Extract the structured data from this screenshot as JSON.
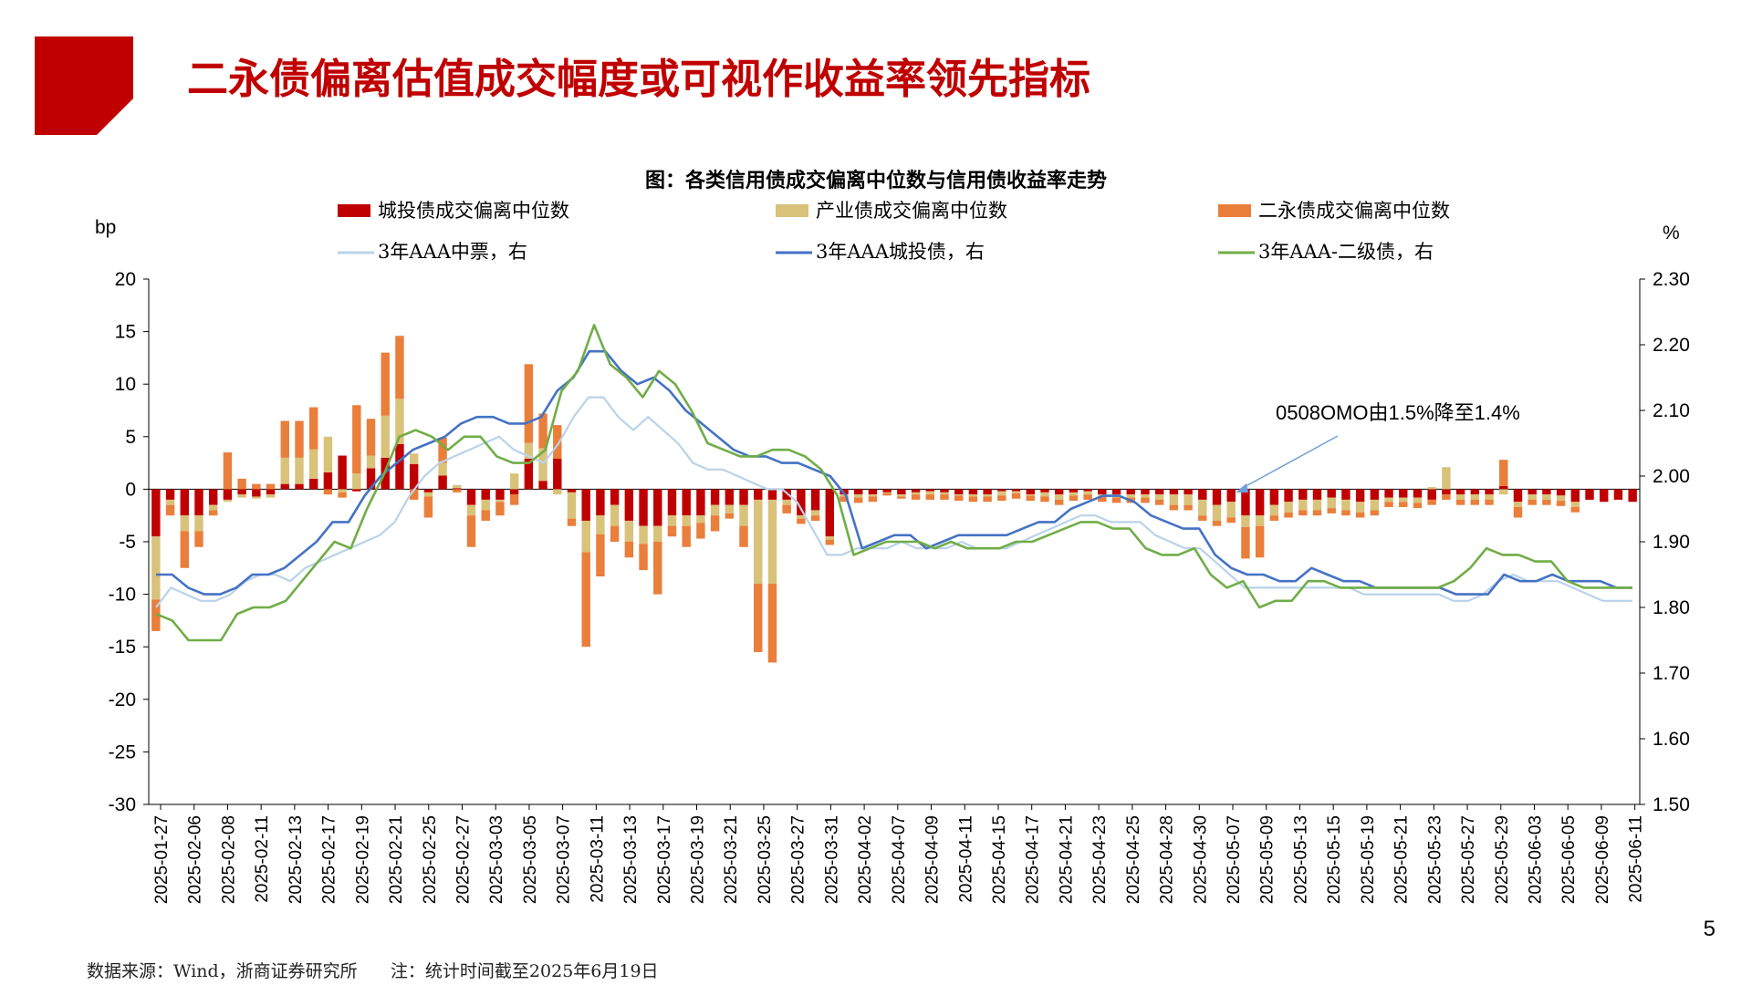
{
  "slide": {
    "title": "二永债偏离估值成交幅度或可视作收益率领先指标",
    "page_number": "5",
    "source_note": "数据来源：Wind，浙商证券研究所",
    "date_note": "注：统计时间截至2025年6月19日",
    "brand_color": "#c00000"
  },
  "chart_data": {
    "type": "bar+line",
    "title": "图：各类信用债成交偏离中位数与信用债收益率走势",
    "left_axis": {
      "unit": "bp",
      "min": -30,
      "max": 20,
      "ticks": [
        20,
        15,
        10,
        5,
        0,
        -5,
        -10,
        -15,
        -20,
        -25,
        -30
      ]
    },
    "right_axis": {
      "unit": "%",
      "min": 1.5,
      "max": 2.3,
      "ticks": [
        "2.30",
        "2.20",
        "2.10",
        "2.00",
        "1.90",
        "1.80",
        "1.70",
        "1.60",
        "1.50"
      ]
    },
    "x_tick_labels": [
      "2025-01-27",
      "2025-02-06",
      "2025-02-08",
      "2025-02-11",
      "2025-02-13",
      "2025-02-17",
      "2025-02-19",
      "2025-02-21",
      "2025-02-25",
      "2025-02-27",
      "2025-03-03",
      "2025-03-05",
      "2025-03-07",
      "2025-03-11",
      "2025-03-13",
      "2025-03-17",
      "2025-03-19",
      "2025-03-21",
      "2025-03-25",
      "2025-03-27",
      "2025-03-31",
      "2025-04-02",
      "2025-04-07",
      "2025-04-09",
      "2025-04-11",
      "2025-04-15",
      "2025-04-17",
      "2025-04-21",
      "2025-04-23",
      "2025-04-25",
      "2025-04-28",
      "2025-04-30",
      "2025-05-07",
      "2025-05-09",
      "2025-05-13",
      "2025-05-15",
      "2025-05-19",
      "2025-05-21",
      "2025-05-23",
      "2025-05-27",
      "2025-05-29",
      "2025-06-03",
      "2025-06-05",
      "2025-06-09",
      "2025-06-11"
    ],
    "legend": [
      {
        "name": "城投债成交偏离中位数",
        "kind": "bar",
        "color": "#c00000"
      },
      {
        "name": "产业债成交偏离中位数",
        "kind": "bar",
        "color": "#d9c27a"
      },
      {
        "name": "二永债成交偏离中位数",
        "kind": "bar",
        "color": "#ea7e3b"
      },
      {
        "name": "3年AAA中票，右",
        "kind": "line",
        "color": "#b9d3ea"
      },
      {
        "name": "3年AAA城投债，右",
        "kind": "line",
        "color": "#4472c4"
      },
      {
        "name": "3年AAA-二级债，右",
        "kind": "line",
        "color": "#70ad47"
      }
    ],
    "bars": {
      "urban": [
        -4.5,
        -1,
        -2.5,
        -2.5,
        -1.5,
        -1,
        -0.5,
        -0.7,
        -0.5,
        0.5,
        0.5,
        1,
        1.6,
        3.2,
        -0.2,
        2,
        3,
        4.3,
        2.4,
        -0.3,
        1.3,
        0.1,
        -1.5,
        -1,
        -1,
        -0.5,
        2.9,
        0.8,
        2.9,
        -0.3,
        -3,
        -2.5,
        -1.5,
        -3,
        -3.5,
        -3.5,
        -2.5,
        -2.5,
        -2.5,
        -1.5,
        -1.5,
        -1.5,
        -1,
        -1,
        -1,
        -2.5,
        -2,
        -4.5,
        -0.5,
        -0.5,
        -0.5,
        -0.3,
        -0.5,
        -0.3,
        -0.2,
        -0.3,
        -0.5,
        -0.5,
        -0.5,
        -0.2,
        -0.2,
        -0.5,
        -0.3,
        -0.5,
        -0.3,
        -0.2,
        -0.5,
        -0.5,
        -0.5,
        -0.5,
        -0.5,
        -0.5,
        -0.5,
        -1,
        -1.5,
        -1.2,
        -2.5,
        -2.5,
        -1.5,
        -1.2,
        -1,
        -1,
        -0.8,
        -1,
        -1.2,
        -1,
        -0.8,
        -0.8,
        -0.8,
        -1,
        -0.5,
        -0.5,
        -0.5,
        -0.5,
        0.3,
        -1.2,
        -0.5,
        -0.5,
        -0.6,
        -1.2,
        -1,
        -1.2,
        -1,
        -1.2
      ],
      "industrial": [
        -6,
        -0.5,
        -1.5,
        -1.5,
        -0.5,
        -0.2,
        -0.3,
        -0.2,
        -0.3,
        2.5,
        2.5,
        2.8,
        3.4,
        -0.3,
        1.5,
        1.2,
        4,
        4.3,
        1,
        -0.4,
        1.2,
        0.3,
        -1,
        -1,
        -0.2,
        1.5,
        1.5,
        3.1,
        -0.5,
        -2.5,
        -3,
        -1.8,
        -2,
        -2,
        -1.7,
        -1.5,
        -1,
        -1,
        -0.7,
        -1,
        -0.8,
        -2,
        -8,
        -8,
        -0.5,
        -0.3,
        -0.5,
        -0.3,
        -0.2,
        -0.3,
        -0.2,
        -0.1,
        -0.2,
        -0.2,
        -0.3,
        -0.2,
        -0.1,
        -0.2,
        -0.2,
        -0.4,
        -0.2,
        -0.1,
        -0.4,
        -0.5,
        -0.3,
        -0.3,
        -0.2,
        -0.3,
        -0.3,
        -0.3,
        -0.5,
        -1,
        -1,
        -1.5,
        -1.5,
        -1.5,
        -1.1,
        -1,
        -1,
        -1,
        -1,
        -1,
        -1,
        -1,
        -1,
        -1,
        -0.4,
        -0.4,
        -0.5,
        0.2,
        2.1,
        -0.5,
        -0.5,
        -0.5,
        -0.5,
        -0.5,
        -0.5,
        -0.5,
        -0.5,
        -0.5
      ],
      "perpetual": [
        -3,
        -1,
        -3.5,
        -1.5,
        -0.5,
        3.5,
        1,
        0.5,
        0.5,
        3.5,
        3.5,
        4,
        -0.5,
        -0.5,
        6.5,
        3.5,
        6,
        6,
        -1,
        -2,
        2.4,
        -0.3,
        -3,
        -1,
        -1.3,
        -1,
        7.5,
        3.3,
        3.2,
        -0.7,
        -9,
        -4,
        -1.5,
        -1.5,
        -2.5,
        -5,
        -1,
        -2,
        -1.5,
        -1.5,
        -0.5,
        -2,
        -6.5,
        -7.5,
        -0.8,
        -0.5,
        -0.5,
        -0.5,
        -0.5,
        -0.5,
        -0.5,
        -0.2,
        -0.2,
        -0.5,
        -0.5,
        -0.5,
        -0.5,
        -0.5,
        -0.5,
        -0.5,
        -0.5,
        -0.5,
        -0.5,
        -0.5,
        -0.5,
        -0.5,
        -0.5,
        -0.5,
        -0.5,
        -0.5,
        -0.5,
        -0.5,
        -0.5,
        -0.5,
        -0.5,
        -0.5,
        -3,
        -3,
        -0.5,
        -0.5,
        -0.5,
        -0.5,
        -0.5,
        -0.5,
        -0.5,
        -0.5,
        -0.5,
        -0.5,
        -0.5,
        -0.5,
        -0.5,
        -0.5,
        -0.5,
        -0.5,
        2.5,
        -1,
        -0.5,
        -0.5,
        -0.5,
        -0.5,
        -0.5,
        -0.5,
        -0.5,
        -0.5
      ]
    },
    "lines": {
      "mtn_3y_aaa": [
        1.8,
        1.83,
        1.82,
        1.81,
        1.81,
        1.82,
        1.84,
        1.85,
        1.85,
        1.84,
        1.86,
        1.87,
        1.88,
        1.89,
        1.9,
        1.91,
        1.93,
        1.97,
        2.0,
        2.02,
        2.03,
        2.04,
        2.05,
        2.06,
        2.04,
        2.03,
        2.02,
        2.05,
        2.09,
        2.12,
        2.12,
        2.09,
        2.07,
        2.09,
        2.07,
        2.05,
        2.02,
        2.01,
        2.01,
        2.0,
        1.99,
        1.98,
        1.98,
        1.96,
        1.92,
        1.88,
        1.88,
        1.89,
        1.89,
        1.89,
        1.9,
        1.89,
        1.89,
        1.89,
        1.9,
        1.89,
        1.89,
        1.89,
        1.9,
        1.91,
        1.92,
        1.93,
        1.94,
        1.94,
        1.93,
        1.93,
        1.93,
        1.91,
        1.9,
        1.89,
        1.89,
        1.87,
        1.85,
        1.83,
        1.83,
        1.83,
        1.83,
        1.83,
        1.83,
        1.83,
        1.83,
        1.82,
        1.82,
        1.82,
        1.82,
        1.82,
        1.82,
        1.81,
        1.81,
        1.82,
        1.84,
        1.85,
        1.84,
        1.84,
        1.84,
        1.83,
        1.82,
        1.81,
        1.81,
        1.81
      ],
      "urban_3y_aaa": [
        1.85,
        1.85,
        1.83,
        1.82,
        1.82,
        1.83,
        1.85,
        1.85,
        1.86,
        1.88,
        1.9,
        1.93,
        1.93,
        1.97,
        2.0,
        2.02,
        2.04,
        2.05,
        2.06,
        2.08,
        2.09,
        2.09,
        2.08,
        2.08,
        2.09,
        2.13,
        2.15,
        2.19,
        2.19,
        2.16,
        2.14,
        2.15,
        2.13,
        2.1,
        2.08,
        2.06,
        2.04,
        2.03,
        2.03,
        2.02,
        2.02,
        2.01,
        2.0,
        1.97,
        1.89,
        1.9,
        1.91,
        1.91,
        1.89,
        1.9,
        1.91,
        1.91,
        1.91,
        1.91,
        1.92,
        1.93,
        1.93,
        1.95,
        1.96,
        1.97,
        1.97,
        1.96,
        1.94,
        1.93,
        1.92,
        1.92,
        1.88,
        1.86,
        1.85,
        1.85,
        1.84,
        1.84,
        1.86,
        1.85,
        1.84,
        1.84,
        1.83,
        1.83,
        1.83,
        1.83,
        1.83,
        1.82,
        1.82,
        1.82,
        1.85,
        1.84,
        1.84,
        1.85,
        1.84,
        1.84,
        1.84,
        1.83,
        1.83
      ],
      "sub_3y_aaa_minus": [
        1.79,
        1.78,
        1.75,
        1.75,
        1.75,
        1.79,
        1.8,
        1.8,
        1.81,
        1.84,
        1.87,
        1.9,
        1.89,
        1.95,
        2.0,
        2.06,
        2.07,
        2.06,
        2.04,
        2.06,
        2.06,
        2.03,
        2.02,
        2.02,
        2.04,
        2.13,
        2.16,
        2.23,
        2.17,
        2.15,
        2.12,
        2.16,
        2.14,
        2.1,
        2.05,
        2.04,
        2.03,
        2.03,
        2.04,
        2.04,
        2.03,
        2.01,
        1.97,
        1.88,
        1.89,
        1.9,
        1.9,
        1.9,
        1.89,
        1.9,
        1.89,
        1.89,
        1.89,
        1.9,
        1.9,
        1.91,
        1.92,
        1.93,
        1.93,
        1.92,
        1.92,
        1.89,
        1.88,
        1.88,
        1.89,
        1.85,
        1.83,
        1.84,
        1.8,
        1.81,
        1.81,
        1.84,
        1.84,
        1.83,
        1.83,
        1.83,
        1.83,
        1.83,
        1.83,
        1.83,
        1.84,
        1.86,
        1.89,
        1.88,
        1.88,
        1.87,
        1.87,
        1.84,
        1.83,
        1.83,
        1.83,
        1.83
      ]
    },
    "annotation": {
      "text": "0508OMO由1.5%降至1.4%",
      "arrow_target_x": "2025-05-09"
    }
  }
}
